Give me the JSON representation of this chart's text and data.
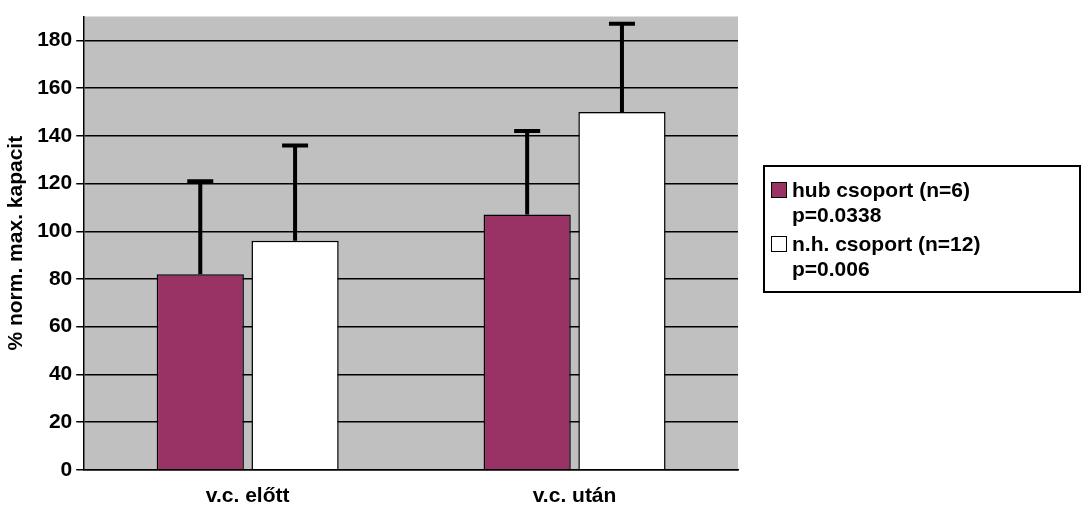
{
  "chart_data": {
    "type": "bar",
    "ylabel": "% norm. max. kapacit",
    "categories": [
      "v.c. előtt",
      "v.c. után"
    ],
    "series": [
      {
        "name": "hub csoport (n=6)\np=0.0338",
        "color": "#993366",
        "values": [
          82,
          107
        ],
        "errors": [
          [
            82,
            121
          ],
          [
            107,
            142
          ]
        ]
      },
      {
        "name": "n.h. csoport (n=12)\np=0.006",
        "color": "#ffffff",
        "values": [
          96,
          150
        ],
        "errors": [
          [
            96,
            136
          ],
          [
            150,
            187
          ]
        ]
      }
    ],
    "ylim": [
      0,
      190
    ],
    "yticks": [
      0,
      20,
      40,
      60,
      80,
      100,
      120,
      140,
      160,
      180
    ],
    "grid": "y",
    "legend": "right"
  }
}
